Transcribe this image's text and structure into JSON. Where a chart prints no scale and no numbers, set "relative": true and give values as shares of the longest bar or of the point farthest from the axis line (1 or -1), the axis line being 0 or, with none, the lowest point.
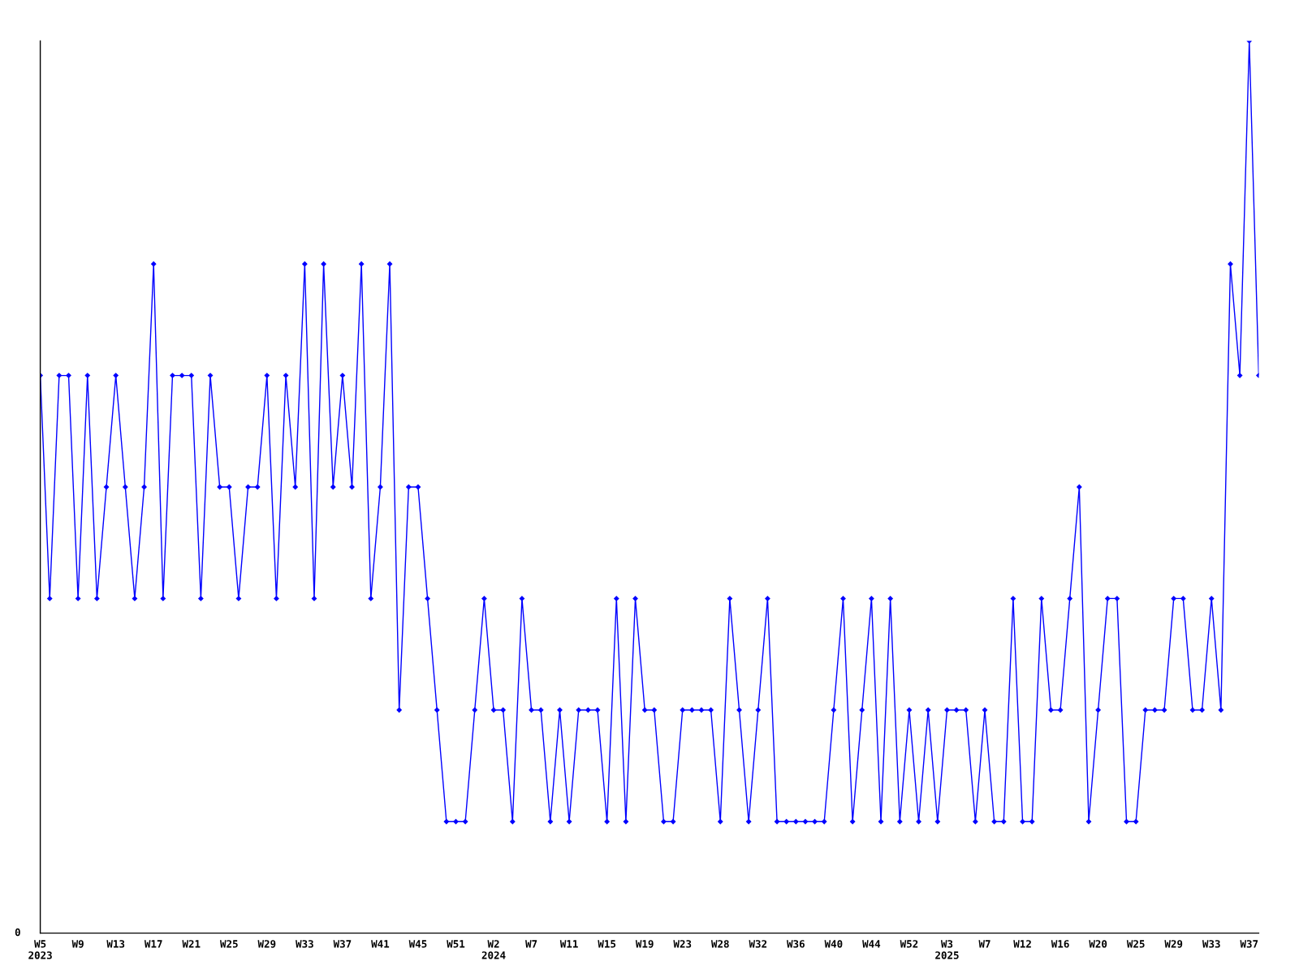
{
  "chart_data": {
    "type": "line",
    "relative": true,
    "marker": "diamond",
    "line_style": "solid",
    "grid": false,
    "legend": false,
    "annotations": [
      "0"
    ],
    "categories": [
      "W5\n2023",
      null,
      null,
      null,
      "W9",
      null,
      null,
      null,
      "W13",
      null,
      null,
      null,
      "W17",
      null,
      null,
      null,
      "W21",
      null,
      null,
      null,
      "W25",
      null,
      null,
      null,
      "W29",
      null,
      null,
      null,
      "W33",
      null,
      null,
      null,
      "W37",
      null,
      null,
      null,
      "W41",
      null,
      null,
      null,
      "W45",
      null,
      null,
      null,
      "W51",
      null,
      null,
      null,
      "W2\n2024",
      null,
      null,
      null,
      "W7",
      null,
      null,
      null,
      "W11",
      null,
      null,
      null,
      "W15",
      null,
      null,
      null,
      "W19",
      null,
      null,
      null,
      "W23",
      null,
      null,
      null,
      "W28",
      null,
      null,
      null,
      "W32",
      null,
      null,
      null,
      "W36",
      null,
      null,
      null,
      "W40",
      null,
      null,
      null,
      "W44",
      null,
      null,
      null,
      "W52",
      null,
      null,
      null,
      "W3\n2025",
      null,
      null,
      null,
      "W7",
      null,
      null,
      null,
      "W12",
      null,
      null,
      null,
      "W16",
      null,
      null,
      null,
      "W20",
      null,
      null,
      null,
      "W25",
      null,
      null,
      null,
      "W29",
      null,
      null,
      null,
      "W33",
      null,
      null,
      null,
      "W37",
      null
    ],
    "series": [
      {
        "color": "#0000ff",
        "values": [
          0.625,
          0.375,
          0.625,
          0.625,
          0.375,
          0.625,
          0.375,
          0.5,
          0.625,
          0.5,
          0.375,
          0.5,
          0.75,
          0.375,
          0.625,
          0.625,
          0.625,
          0.375,
          0.625,
          0.5,
          0.5,
          0.375,
          0.5,
          0.5,
          0.625,
          0.375,
          0.625,
          0.5,
          0.75,
          0.375,
          0.75,
          0.5,
          0.625,
          0.5,
          0.75,
          0.375,
          0.5,
          0.75,
          0.25,
          0.5,
          0.5,
          0.375,
          0.25,
          0.125,
          0.125,
          0.125,
          0.25,
          0.375,
          0.25,
          0.25,
          0.125,
          0.375,
          0.25,
          0.25,
          0.125,
          0.25,
          0.125,
          0.25,
          0.25,
          0.25,
          0.125,
          0.375,
          0.125,
          0.375,
          0.25,
          0.25,
          0.125,
          0.125,
          0.25,
          0.25,
          0.25,
          0.25,
          0.125,
          0.375,
          0.25,
          0.125,
          0.25,
          0.375,
          0.125,
          0.125,
          0.125,
          0.125,
          0.125,
          0.125,
          0.25,
          0.375,
          0.125,
          0.25,
          0.375,
          0.125,
          0.375,
          0.125,
          0.25,
          0.125,
          0.25,
          0.125,
          0.25,
          0.25,
          0.25,
          0.125,
          0.25,
          0.125,
          0.125,
          0.375,
          0.125,
          0.125,
          0.375,
          0.25,
          0.25,
          0.375,
          0.5,
          0.125,
          0.25,
          0.375,
          0.375,
          0.125,
          0.125,
          0.25,
          0.25,
          0.25,
          0.375,
          0.375,
          0.25,
          0.25,
          0.375,
          0.25,
          0.75,
          0.625,
          1,
          0.625
        ]
      }
    ]
  }
}
